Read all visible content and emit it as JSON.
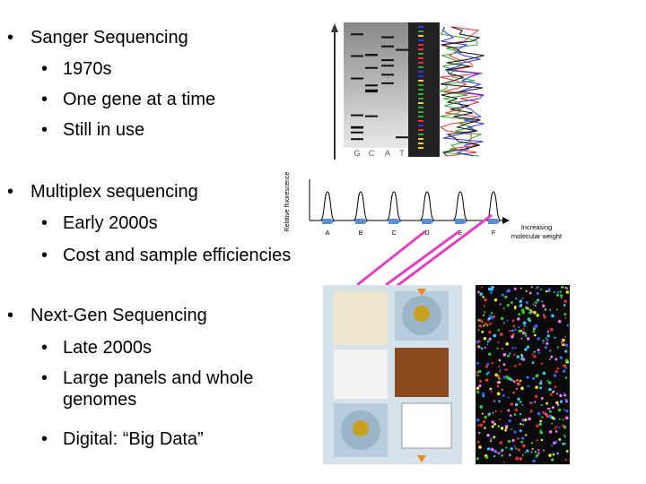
{
  "sections": [
    {
      "title": "Sanger Sequencing",
      "items": [
        "1970s",
        "One gene at a time",
        "Still in use"
      ]
    },
    {
      "title": "Multiplex sequencing",
      "items": [
        "Early 2000s",
        "Cost and sample efficiencies"
      ]
    },
    {
      "title": "Next-Gen Sequencing",
      "items": [
        "Late 2000s",
        "Large panels and whole genomes",
        "Digital: “Big Data”"
      ]
    }
  ],
  "gel": {
    "lanes": [
      "G",
      "C",
      "A",
      "T"
    ]
  },
  "multiplex": {
    "y_label": "Relative fluorescence",
    "peaks": [
      "A",
      "B",
      "C",
      "D",
      "E",
      "F"
    ],
    "x_label": "Increasing molecular weight"
  }
}
